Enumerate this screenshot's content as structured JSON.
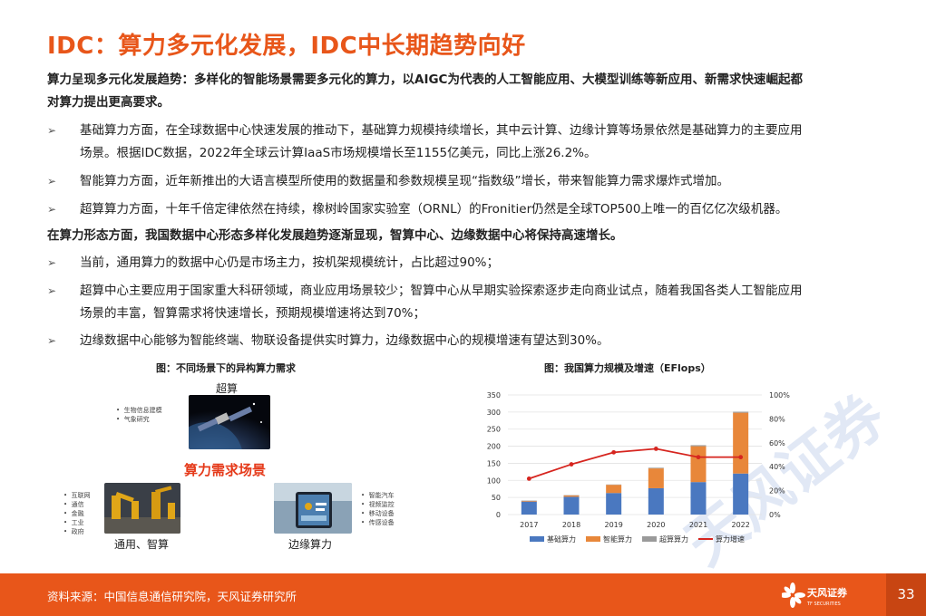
{
  "title": "IDC：算力多元化发展，IDC中长期趋势向好",
  "para1": "算力呈现多元化发展趋势：多样化的智能场景需要多元化的算力，以AIGC为代表的人工智能应用、大模型训练等新应用、新需求快速崛起都",
  "para1b": "对算力提出更高要求。",
  "bullets1": [
    {
      "line1": "基础算力方面，在全球数据中心快速发展的推动下，基础算力规模持续增长，其中云计算、边缘计算等场景依然是基础算力的主要应用",
      "line2": "场景。根据IDC数据，2022年全球云计算IaaS市场规模增长至1155亿美元，同比上涨26.2%。"
    },
    {
      "line1": "智能算力方面，近年新推出的大语言模型所使用的数据量和参数规模呈现“指数级”增长，带来智能算力需求爆炸式增加。",
      "line2": ""
    },
    {
      "line1": "超算算力方面，十年千倍定律依然在持续，橡树岭国家实验室（ORNL）的Fronitier仍然是全球TOP500上唯一的百亿亿次级机器。",
      "line2": ""
    }
  ],
  "para2": "在算力形态方面，我国数据中心形态多样化发展趋势逐渐显现，智算中心、边缘数据中心将保持高速增长。",
  "bullets2": [
    {
      "line1": "当前，通用算力的数据中心仍是市场主力，按机架规模统计，占比超过90%；",
      "line2": ""
    },
    {
      "line1": "超算中心主要应用于国家重大科研领域，商业应用场景较少；智算中心从早期实验探索逐步走向商业试点，随着我国各类人工智能应用",
      "line2": "场景的丰富，智算需求将快速增长，预期规模增速将达到70%；"
    },
    {
      "line1": "边缘数据中心能够为智能终端、物联设备提供实时算力，边缘数据中心的规模增速有望达到30%。",
      "line2": ""
    }
  ],
  "arrow": "➢",
  "fig1": {
    "caption": "图：不同场景下的异构算力需求",
    "super_label": "超算",
    "super_list": [
      "生物信息建模",
      "气象研究"
    ],
    "center_label": "算力需求场景",
    "general_label": "通用、智算",
    "general_list": [
      "互联网",
      "通信",
      "金融",
      "工业",
      "政府"
    ],
    "edge_label": "边缘算力",
    "edge_list": [
      "智能汽车",
      "视频监控",
      "移动设备",
      "传感设备"
    ]
  },
  "fig2": {
    "caption": "图：我国算力规模及增速（EFlops）"
  },
  "chart_data": {
    "type": "bar",
    "title": "图：我国算力规模及增速（EFlops）",
    "categories": [
      "2017",
      "2018",
      "2019",
      "2020",
      "2021",
      "2022"
    ],
    "stacked": true,
    "series": [
      {
        "name": "基础算力",
        "type": "bar",
        "axis": "left",
        "values": [
          38,
          52,
          63,
          77,
          95,
          120
        ]
      },
      {
        "name": "智能算力",
        "type": "bar",
        "axis": "left",
        "values": [
          2,
          4,
          24,
          58,
          105,
          178
        ]
      },
      {
        "name": "超算算力",
        "type": "bar",
        "axis": "left",
        "values": [
          1,
          1,
          1,
          2,
          3,
          3
        ]
      },
      {
        "name": "算力增速",
        "type": "line",
        "axis": "right",
        "values": [
          0.3,
          0.42,
          0.52,
          0.55,
          0.48,
          0.48
        ]
      }
    ],
    "y_left": {
      "min": 0,
      "max": 350,
      "ticks": [
        "0",
        "50",
        "100",
        "150",
        "200",
        "250",
        "300",
        "350"
      ]
    },
    "y_right": {
      "min": 0,
      "max": 1,
      "ticks": [
        "0%",
        "20%",
        "40%",
        "60%",
        "80%",
        "100%"
      ]
    },
    "grid": true,
    "legend": "bottom",
    "colors": {
      "基础算力": "#4a78c0",
      "智能算力": "#e8873a",
      "超算算力": "#9a9a9a",
      "算力增速": "#d6251f"
    }
  },
  "watermark": "天风证券",
  "footer": {
    "source": "资料来源：中国信息通信研究院，天风证券研究所",
    "logo_cn": "天风证券",
    "logo_en": "TF SECURITIES",
    "page": "33"
  }
}
